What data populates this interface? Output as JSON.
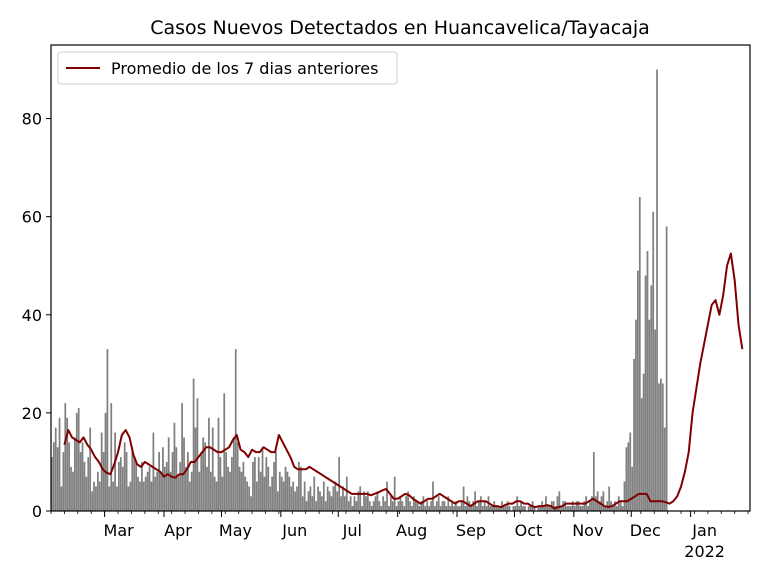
{
  "chart_data": {
    "type": "bar",
    "title": "Casos Nuevos Detectados en Huancavelica/Tayacaja",
    "xlabel": "",
    "ylabel": "",
    "ylim": [
      0,
      95
    ],
    "x_range": [
      "2021-02-01",
      "2022-01-31"
    ],
    "y_ticks": [
      0,
      20,
      40,
      60,
      80
    ],
    "x_ticks": [
      {
        "date": "2021-03-01",
        "label": "Mar"
      },
      {
        "date": "2021-04-01",
        "label": "Apr"
      },
      {
        "date": "2021-05-01",
        "label": "May"
      },
      {
        "date": "2021-06-01",
        "label": "Jun"
      },
      {
        "date": "2021-07-01",
        "label": "Jul"
      },
      {
        "date": "2021-08-01",
        "label": "Aug"
      },
      {
        "date": "2021-09-01",
        "label": "Sep"
      },
      {
        "date": "2021-10-01",
        "label": "Oct"
      },
      {
        "date": "2021-11-01",
        "label": "Nov"
      },
      {
        "date": "2021-12-01",
        "label": "Dec"
      },
      {
        "date": "2022-01-01",
        "label": "Jan",
        "sublabel": "2022"
      }
    ],
    "grid": false,
    "legend": {
      "position": "top-left",
      "entries": [
        "Promedio de los 7 dias anteriores"
      ]
    },
    "bar_color": "#808080",
    "line_color": "#800000",
    "bars": {
      "name": "Casos nuevos diarios",
      "start_date": "2021-02-01",
      "values": [
        11,
        14,
        17,
        13,
        19,
        5,
        12,
        22,
        19,
        14,
        9,
        8,
        15,
        20,
        21,
        12,
        14,
        10,
        7,
        11,
        17,
        4,
        6,
        5,
        8,
        6,
        16,
        12,
        20,
        33,
        5,
        22,
        6,
        16,
        5,
        10,
        11,
        9,
        14,
        12,
        5,
        6,
        13,
        11,
        10,
        7,
        6,
        10,
        6,
        7,
        8,
        9,
        6,
        16,
        7,
        8,
        12,
        8,
        13,
        9,
        10,
        15,
        8,
        12,
        18,
        13,
        7,
        10,
        22,
        15,
        9,
        12,
        6,
        8,
        27,
        17,
        23,
        8,
        12,
        15,
        14,
        9,
        19,
        8,
        17,
        7,
        6,
        19,
        11,
        7,
        24,
        12,
        9,
        8,
        11,
        15,
        33,
        14,
        9,
        8,
        10,
        7,
        6,
        5,
        3,
        10,
        11,
        6,
        11,
        8,
        13,
        7,
        11,
        9,
        5,
        7,
        10,
        12,
        4,
        8,
        7,
        6,
        9,
        8,
        7,
        5,
        6,
        4,
        5,
        10,
        9,
        3,
        6,
        2,
        4,
        5,
        3,
        7,
        2,
        5,
        4,
        3,
        6,
        2,
        5,
        4,
        3,
        5,
        6,
        4,
        11,
        3,
        5,
        3,
        7,
        2,
        3,
        1,
        3,
        2,
        4,
        5,
        1,
        4,
        3,
        4,
        2,
        1,
        2,
        3,
        4,
        2,
        1,
        3,
        2,
        6,
        1,
        3,
        2,
        7,
        1,
        2,
        3,
        2,
        1,
        3,
        4,
        2,
        1,
        3,
        2,
        2,
        1,
        2,
        3,
        1,
        2,
        1,
        2,
        6,
        1,
        2,
        3,
        1,
        2,
        2,
        1,
        3,
        1,
        2,
        1,
        2,
        1,
        1,
        2,
        5,
        1,
        3,
        2,
        1,
        2,
        4,
        1,
        2,
        3,
        1,
        2,
        1,
        3,
        1,
        1,
        2,
        1,
        1,
        1,
        2,
        1,
        1,
        2,
        1,
        0,
        1,
        1,
        3,
        1,
        2,
        1,
        1,
        0,
        1,
        1,
        2,
        1,
        0,
        1,
        1,
        2,
        1,
        3,
        1,
        1,
        2,
        2,
        1,
        3,
        4,
        1,
        2,
        2,
        1,
        1,
        1,
        2,
        1,
        2,
        2,
        1,
        1,
        2,
        3,
        1,
        2,
        3,
        12,
        3,
        4,
        2,
        3,
        4,
        1,
        2,
        5,
        2,
        1,
        2,
        1,
        3,
        2,
        1,
        6,
        13,
        14,
        16,
        9,
        31,
        39,
        49,
        64,
        23,
        28,
        48,
        53,
        39,
        46,
        61,
        37,
        90,
        26,
        27,
        26,
        17,
        58
      ]
    },
    "line": {
      "name": "Promedio de los 7 dias anteriores",
      "values": [
        13.5,
        16.5,
        15,
        14.5,
        14,
        15,
        13.5,
        12.5,
        11,
        10,
        8.5,
        7.8,
        7.5,
        9.5,
        12,
        15.5,
        16.5,
        15,
        11.5,
        9.5,
        9,
        10,
        9.5,
        9,
        8.5,
        8,
        7,
        7.5,
        7,
        6.8,
        7.5,
        7.5,
        8.5,
        10,
        10,
        11,
        12,
        13,
        13,
        12.5,
        12,
        12,
        12.5,
        13,
        14.5,
        15.5,
        12.5,
        12,
        11,
        12.5,
        12,
        12,
        13,
        12.5,
        12,
        12,
        15.5,
        14,
        12.5,
        11,
        9,
        8.5,
        8.5,
        8.5,
        9,
        8.5,
        8,
        7.5,
        7,
        6.5,
        6,
        5.5,
        5,
        4.5,
        4,
        3.5,
        3.5,
        3.5,
        3.5,
        3.5,
        3.2,
        3.5,
        3.8,
        4.2,
        4.5,
        3.5,
        2.5,
        2.5,
        3,
        3.5,
        3.2,
        2.5,
        2,
        1.5,
        2,
        2.5,
        2.5,
        3,
        3.5,
        3,
        2.5,
        2,
        1.5,
        2,
        2,
        1.5,
        1,
        1.5,
        2,
        2,
        2,
        1.5,
        1,
        1,
        0.8,
        1.2,
        1.5,
        1.5,
        2,
        2,
        1.5,
        1.5,
        1,
        0.8,
        1,
        1,
        1.2,
        1,
        0.5,
        0.8,
        1,
        1.5,
        1.5,
        1.5,
        1.5,
        1.5,
        1.5,
        2,
        2.5,
        2,
        1.5,
        1,
        0.8,
        1,
        1.5,
        2,
        2,
        2,
        2.5,
        3,
        3.5,
        3.5,
        3.5,
        2,
        2,
        2,
        2,
        1.8,
        1.5,
        2,
        3,
        5,
        8,
        12,
        20,
        25,
        30,
        34,
        38,
        42,
        43,
        40,
        44,
        50,
        52.5,
        47,
        38,
        33
      ],
      "line_start_date": "2021-02-08",
      "line_step_days": 2
    }
  }
}
